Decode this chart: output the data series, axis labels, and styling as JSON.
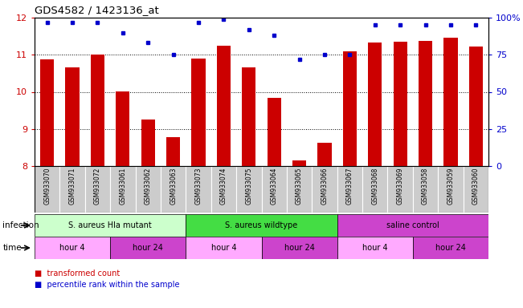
{
  "title": "GDS4582 / 1423136_at",
  "samples": [
    "GSM933070",
    "GSM933071",
    "GSM933072",
    "GSM933061",
    "GSM933062",
    "GSM933063",
    "GSM933073",
    "GSM933074",
    "GSM933075",
    "GSM933064",
    "GSM933065",
    "GSM933066",
    "GSM933067",
    "GSM933068",
    "GSM933069",
    "GSM933058",
    "GSM933059",
    "GSM933060"
  ],
  "bar_values": [
    10.88,
    10.67,
    11.0,
    10.02,
    9.25,
    8.77,
    10.9,
    11.25,
    10.67,
    9.83,
    8.15,
    8.62,
    11.1,
    11.32,
    11.35,
    11.38,
    11.45,
    11.22
  ],
  "dot_values": [
    97,
    97,
    97,
    90,
    83,
    75,
    97,
    99,
    92,
    88,
    72,
    75,
    75,
    95,
    95,
    95,
    95,
    95
  ],
  "ylim_left": [
    8,
    12
  ],
  "ylim_right": [
    0,
    100
  ],
  "yticks_left": [
    8,
    9,
    10,
    11,
    12
  ],
  "yticks_right": [
    0,
    25,
    50,
    75,
    100
  ],
  "bar_color": "#cc0000",
  "dot_color": "#0000cc",
  "infection_groups": [
    {
      "label": "S. aureus Hla mutant",
      "start": 0,
      "end": 6,
      "color": "#ccffcc"
    },
    {
      "label": "S. aureus wildtype",
      "start": 6,
      "end": 12,
      "color": "#44dd44"
    },
    {
      "label": "saline control",
      "start": 12,
      "end": 18,
      "color": "#cc44cc"
    }
  ],
  "time_groups": [
    {
      "label": "hour 4",
      "start": 0,
      "end": 3,
      "color": "#ffaaff"
    },
    {
      "label": "hour 24",
      "start": 3,
      "end": 6,
      "color": "#cc44cc"
    },
    {
      "label": "hour 4",
      "start": 6,
      "end": 9,
      "color": "#ffaaff"
    },
    {
      "label": "hour 24",
      "start": 9,
      "end": 12,
      "color": "#cc44cc"
    },
    {
      "label": "hour 4",
      "start": 12,
      "end": 15,
      "color": "#ffaaff"
    },
    {
      "label": "hour 24",
      "start": 15,
      "end": 18,
      "color": "#cc44cc"
    }
  ],
  "legend_bar_label": "transformed count",
  "legend_dot_label": "percentile rank within the sample",
  "infection_label": "infection",
  "time_label": "time",
  "left_axis_color": "#cc0000",
  "right_axis_color": "#0000cc",
  "sample_bg_color": "#cccccc",
  "bar_width": 0.55
}
